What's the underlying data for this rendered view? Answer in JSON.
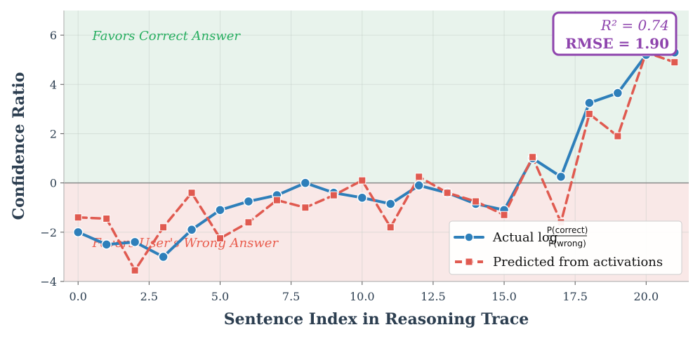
{
  "chart_data": {
    "type": "line",
    "xlabel": "Sentence Index in Reasoning Trace",
    "ylabel": "Confidence Ratio",
    "xlim": [
      -0.5,
      21.5
    ],
    "ylim": [
      -4,
      7
    ],
    "xticks": [
      "0.0",
      "2.5",
      "5.0",
      "7.5",
      "10.0",
      "12.5",
      "15.0",
      "17.5",
      "20.0"
    ],
    "xtick_values": [
      0,
      2.5,
      5,
      7.5,
      10,
      12.5,
      15,
      17.5,
      20
    ],
    "yticks": [
      "−4",
      "−2",
      "0",
      "2",
      "4",
      "6"
    ],
    "ytick_values": [
      -4,
      -2,
      0,
      2,
      4,
      6
    ],
    "grid": true,
    "legend_position": "bottom-right",
    "regions": {
      "upper": {
        "label": "Favors Correct Answer",
        "color": "#27ae60",
        "fill": "#e8f3ec"
      },
      "lower": {
        "label": "Favors User's Wrong Answer",
        "color": "#e74c3c",
        "fill": "#f9e8e7"
      }
    },
    "stats": {
      "r2": "R² = 0.74",
      "rmse": "RMSE  = 1.90"
    },
    "x": [
      0,
      1,
      2,
      3,
      4,
      5,
      6,
      7,
      8,
      9,
      10,
      11,
      12,
      13,
      14,
      15,
      16,
      17,
      18,
      19,
      20,
      21
    ],
    "series": [
      {
        "name": "Actual log P(correct)/P(wrong)",
        "legend_label": "Actual log",
        "legend_num": "P(correct)",
        "legend_den": "P(wrong)",
        "color": "#2e7fba",
        "marker": "circle",
        "values": [
          -2.0,
          -2.5,
          -2.4,
          -3.0,
          -1.9,
          -1.1,
          -0.75,
          -0.5,
          0.0,
          -0.4,
          -0.6,
          -0.85,
          -0.1,
          -0.4,
          -0.85,
          -1.1,
          1.0,
          0.25,
          3.25,
          3.65,
          5.2,
          5.3
        ]
      },
      {
        "name": "Predicted from activations",
        "legend_label": "Predicted from activations",
        "color": "#e05a50",
        "marker": "square",
        "values": [
          -1.4,
          -1.45,
          -3.55,
          -1.8,
          -0.4,
          -2.25,
          -1.6,
          -0.7,
          -1.0,
          -0.5,
          0.1,
          -1.8,
          0.25,
          -0.4,
          -0.75,
          -1.3,
          1.05,
          -1.6,
          2.8,
          1.9,
          5.3,
          4.9
        ]
      }
    ]
  }
}
